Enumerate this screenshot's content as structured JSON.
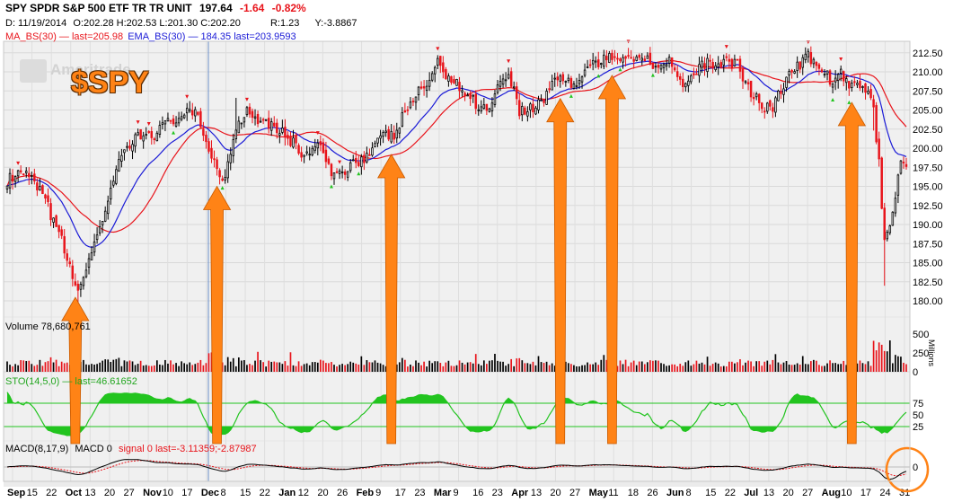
{
  "header": {
    "symbol_line": "SPY SPDR S&P 500 ETF TR TR UNIT",
    "last_price": "197.64",
    "change": "-1.64",
    "change_pct": "-0.82%",
    "date": "D: 11/19/2014",
    "ohlc": "O:202.28 H:202.53 L:201.30 C:202.20",
    "r_value": "R:1.23",
    "y_value": "Y:-3.8867",
    "ma_line": "MA_BS(30) — last=205.98",
    "ema_line": "EMA_BS(30) — 184.35 last=203.9593"
  },
  "watermark": {
    "brand": "Ameritrade"
  },
  "overlay_title": "$SPY",
  "colors": {
    "up": "#000000",
    "down": "#e8141b",
    "ma": "#e8141b",
    "ema": "#1a1ad6",
    "stoch": "#22c41f",
    "arrow": "#ff8316",
    "grid": "#d9d9d9",
    "panel_bg": "#ebebeb"
  },
  "chart_data": [
    {
      "type": "candlestick",
      "title": "SPY SPDR S&P 500 ETF TR TR UNIT",
      "ylim": [
        178,
        214
      ],
      "yticks": [
        "212.50",
        "210.00",
        "207.50",
        "205.00",
        "202.50",
        "200.00",
        "197.50",
        "195.00",
        "192.50",
        "190.00",
        "187.50",
        "185.00",
        "182.50",
        "180.00"
      ],
      "x_labels": [
        "Sep",
        "15",
        "22",
        "Oct",
        "13",
        "20",
        "27",
        "Nov",
        "10",
        "17",
        "Dec",
        "8",
        "15",
        "22",
        "Jan",
        "12",
        "20",
        "26",
        "Feb",
        "9",
        "17",
        "23",
        "Mar",
        "9",
        "16",
        "23",
        "Apr",
        "13",
        "20",
        "27",
        "May",
        "11",
        "18",
        "26",
        "Jun",
        "8",
        "15",
        "22",
        "Jul",
        "13",
        "20",
        "27",
        "Aug",
        "10",
        "17",
        "24",
        "31"
      ],
      "anchors": [
        [
          0,
          195.8
        ],
        [
          7,
          196.6
        ],
        [
          13,
          193.8
        ],
        [
          19,
          189.0
        ],
        [
          24,
          183.0
        ],
        [
          27,
          181.5
        ],
        [
          32,
          188.0
        ],
        [
          36,
          191.5
        ],
        [
          42,
          199.0
        ],
        [
          48,
          201.5
        ],
        [
          54,
          202.0
        ],
        [
          58,
          203.0
        ],
        [
          64,
          204.4
        ],
        [
          69,
          204.5
        ],
        [
          73,
          201.0
        ],
        [
          78,
          196.5
        ],
        [
          80,
          196.0
        ],
        [
          84,
          203.0
        ],
        [
          88,
          205.0
        ],
        [
          92,
          204.0
        ],
        [
          98,
          203.0
        ],
        [
          104,
          201.0
        ],
        [
          109,
          199.0
        ],
        [
          114,
          200.5
        ],
        [
          120,
          196.0
        ],
        [
          126,
          198.0
        ],
        [
          132,
          199.0
        ],
        [
          138,
          201.5
        ],
        [
          142,
          201.7
        ],
        [
          148,
          206.0
        ],
        [
          154,
          208.5
        ],
        [
          158,
          211.0
        ],
        [
          162,
          209.5
        ],
        [
          170,
          206.5
        ],
        [
          176,
          205.0
        ],
        [
          180,
          208.0
        ],
        [
          184,
          210.0
        ],
        [
          188,
          205.0
        ],
        [
          192,
          205.2
        ],
        [
          196,
          206.0
        ],
        [
          200,
          208.5
        ],
        [
          204,
          209.5
        ],
        [
          208,
          208.0
        ],
        [
          214,
          211.0
        ],
        [
          220,
          211.5
        ],
        [
          226,
          212.2
        ],
        [
          232,
          212.0
        ],
        [
          238,
          211.0
        ],
        [
          244,
          211.5
        ],
        [
          248,
          208.0
        ],
        [
          252,
          209.5
        ],
        [
          256,
          211.0
        ],
        [
          262,
          211.3
        ],
        [
          268,
          211.0
        ],
        [
          272,
          208.0
        ],
        [
          276,
          206.0
        ],
        [
          280,
          205.0
        ],
        [
          284,
          207.5
        ],
        [
          288,
          210.0
        ],
        [
          294,
          212.0
        ],
        [
          298,
          210.5
        ],
        [
          302,
          209.0
        ],
        [
          306,
          209.6
        ],
        [
          310,
          208.0
        ],
        [
          313,
          208.3
        ],
        [
          315,
          208.0
        ],
        [
          318,
          205.0
        ],
        [
          320,
          198.0
        ],
        [
          322,
          187.5
        ],
        [
          324,
          190.5
        ],
        [
          326,
          194.0
        ],
        [
          328,
          198.0
        ],
        [
          330,
          197.6
        ]
      ],
      "arrow_bars": [
        25,
        77,
        141,
        203,
        222,
        310
      ],
      "volume": {
        "label": "Volume 78,680,761",
        "unit": "Millions",
        "yticks": [
          "500",
          "250",
          "0"
        ]
      },
      "stochastic": {
        "label": "STO(14,5,0) — last=46.61652",
        "yticks": [
          "75",
          "50",
          "25"
        ],
        "bands": [
          75,
          25
        ]
      },
      "macd": {
        "label": "MACD(8,17,9)",
        "macd_text": "MACD 0",
        "signal_text": "signal 0 last=-3.11359;-2.87987",
        "yticks": [
          "0"
        ]
      }
    }
  ]
}
